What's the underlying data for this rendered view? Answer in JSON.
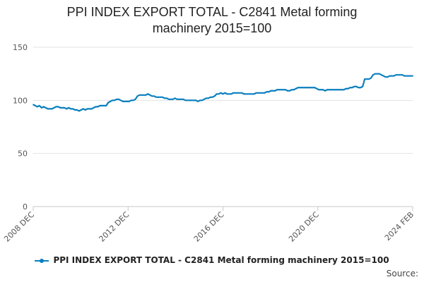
{
  "chart_data": {
    "type": "line",
    "title_lines": [
      "PPI INDEX EXPORT TOTAL - C2841 Metal forming",
      "machinery 2015=100"
    ],
    "y_ticks": [
      0,
      50,
      100,
      150
    ],
    "ylim": [
      0,
      150
    ],
    "x_tick_labels": [
      "2008 DEC",
      "2012 DEC",
      "2016 DEC",
      "2020 DEC",
      "2024 FEB"
    ],
    "x_range": [
      "2008-12",
      "2024-02"
    ],
    "grid": true,
    "legend_position": "bottom",
    "series": [
      {
        "name": "PPI INDEX EXPORT TOTAL - C2841 Metal forming machinery 2015=100",
        "color": "#0a7fbf",
        "points": [
          [
            "2008-12",
            96
          ],
          [
            "2009-01",
            95
          ],
          [
            "2009-02",
            94
          ],
          [
            "2009-03",
            95
          ],
          [
            "2009-04",
            93
          ],
          [
            "2009-05",
            94
          ],
          [
            "2009-06",
            93
          ],
          [
            "2009-07",
            92
          ],
          [
            "2009-08",
            92
          ],
          [
            "2009-09",
            92
          ],
          [
            "2009-10",
            93
          ],
          [
            "2009-11",
            94
          ],
          [
            "2009-12",
            94
          ],
          [
            "2010-01",
            93
          ],
          [
            "2010-02",
            93
          ],
          [
            "2010-03",
            93
          ],
          [
            "2010-04",
            92
          ],
          [
            "2010-05",
            93
          ],
          [
            "2010-06",
            92
          ],
          [
            "2010-07",
            92
          ],
          [
            "2010-08",
            91
          ],
          [
            "2010-09",
            91
          ],
          [
            "2010-10",
            90
          ],
          [
            "2010-11",
            91
          ],
          [
            "2010-12",
            92
          ],
          [
            "2011-01",
            91
          ],
          [
            "2011-02",
            92
          ],
          [
            "2011-03",
            92
          ],
          [
            "2011-04",
            92
          ],
          [
            "2011-05",
            93
          ],
          [
            "2011-06",
            94
          ],
          [
            "2011-07",
            94
          ],
          [
            "2011-08",
            95
          ],
          [
            "2011-09",
            95
          ],
          [
            "2011-10",
            95
          ],
          [
            "2011-11",
            95
          ],
          [
            "2011-12",
            98
          ],
          [
            "2012-01",
            99
          ],
          [
            "2012-02",
            100
          ],
          [
            "2012-03",
            100
          ],
          [
            "2012-04",
            101
          ],
          [
            "2012-05",
            101
          ],
          [
            "2012-06",
            100
          ],
          [
            "2012-07",
            99
          ],
          [
            "2012-08",
            99
          ],
          [
            "2012-09",
            99
          ],
          [
            "2012-10",
            99
          ],
          [
            "2012-11",
            100
          ],
          [
            "2012-12",
            100
          ],
          [
            "2013-01",
            101
          ],
          [
            "2013-02",
            104
          ],
          [
            "2013-03",
            105
          ],
          [
            "2013-04",
            105
          ],
          [
            "2013-05",
            105
          ],
          [
            "2013-06",
            105
          ],
          [
            "2013-07",
            106
          ],
          [
            "2013-08",
            105
          ],
          [
            "2013-09",
            104
          ],
          [
            "2013-10",
            104
          ],
          [
            "2013-11",
            103
          ],
          [
            "2013-12",
            103
          ],
          [
            "2014-01",
            103
          ],
          [
            "2014-02",
            103
          ],
          [
            "2014-03",
            102
          ],
          [
            "2014-04",
            102
          ],
          [
            "2014-05",
            101
          ],
          [
            "2014-06",
            101
          ],
          [
            "2014-07",
            101
          ],
          [
            "2014-08",
            102
          ],
          [
            "2014-09",
            101
          ],
          [
            "2014-10",
            101
          ],
          [
            "2014-11",
            101
          ],
          [
            "2014-12",
            101
          ],
          [
            "2015-01",
            100
          ],
          [
            "2015-02",
            100
          ],
          [
            "2015-03",
            100
          ],
          [
            "2015-04",
            100
          ],
          [
            "2015-05",
            100
          ],
          [
            "2015-06",
            100
          ],
          [
            "2015-07",
            99
          ],
          [
            "2015-08",
            100
          ],
          [
            "2015-09",
            100
          ],
          [
            "2015-10",
            101
          ],
          [
            "2015-11",
            102
          ],
          [
            "2015-12",
            102
          ],
          [
            "2016-01",
            103
          ],
          [
            "2016-02",
            103
          ],
          [
            "2016-03",
            104
          ],
          [
            "2016-04",
            106
          ],
          [
            "2016-05",
            106
          ],
          [
            "2016-06",
            107
          ],
          [
            "2016-07",
            106
          ],
          [
            "2016-08",
            107
          ],
          [
            "2016-09",
            106
          ],
          [
            "2016-10",
            106
          ],
          [
            "2016-11",
            106
          ],
          [
            "2016-12",
            107
          ],
          [
            "2017-01",
            107
          ],
          [
            "2017-02",
            107
          ],
          [
            "2017-03",
            107
          ],
          [
            "2017-04",
            107
          ],
          [
            "2017-05",
            106
          ],
          [
            "2017-06",
            106
          ],
          [
            "2017-07",
            106
          ],
          [
            "2017-08",
            106
          ],
          [
            "2017-09",
            106
          ],
          [
            "2017-10",
            106
          ],
          [
            "2017-11",
            107
          ],
          [
            "2017-12",
            107
          ],
          [
            "2018-01",
            107
          ],
          [
            "2018-02",
            107
          ],
          [
            "2018-03",
            107
          ],
          [
            "2018-04",
            108
          ],
          [
            "2018-05",
            108
          ],
          [
            "2018-06",
            109
          ],
          [
            "2018-07",
            109
          ],
          [
            "2018-08",
            109
          ],
          [
            "2018-09",
            110
          ],
          [
            "2018-10",
            110
          ],
          [
            "2018-11",
            110
          ],
          [
            "2018-12",
            110
          ],
          [
            "2019-01",
            110
          ],
          [
            "2019-02",
            109
          ],
          [
            "2019-03",
            109
          ],
          [
            "2019-04",
            110
          ],
          [
            "2019-05",
            110
          ],
          [
            "2019-06",
            111
          ],
          [
            "2019-07",
            112
          ],
          [
            "2019-08",
            112
          ],
          [
            "2019-09",
            112
          ],
          [
            "2019-10",
            112
          ],
          [
            "2019-11",
            112
          ],
          [
            "2019-12",
            112
          ],
          [
            "2020-01",
            112
          ],
          [
            "2020-02",
            112
          ],
          [
            "2020-03",
            112
          ],
          [
            "2020-04",
            111
          ],
          [
            "2020-05",
            110
          ],
          [
            "2020-06",
            110
          ],
          [
            "2020-07",
            110
          ],
          [
            "2020-08",
            109
          ],
          [
            "2020-09",
            110
          ],
          [
            "2020-10",
            110
          ],
          [
            "2020-11",
            110
          ],
          [
            "2020-12",
            110
          ],
          [
            "2021-01",
            110
          ],
          [
            "2021-02",
            110
          ],
          [
            "2021-03",
            110
          ],
          [
            "2021-04",
            110
          ],
          [
            "2021-05",
            110
          ],
          [
            "2021-06",
            111
          ],
          [
            "2021-07",
            111
          ],
          [
            "2021-08",
            112
          ],
          [
            "2021-09",
            112
          ],
          [
            "2021-10",
            113
          ],
          [
            "2021-11",
            113
          ],
          [
            "2021-12",
            112
          ],
          [
            "2022-01",
            112
          ],
          [
            "2022-02",
            113
          ],
          [
            "2022-03",
            120
          ],
          [
            "2022-04",
            120
          ],
          [
            "2022-05",
            120
          ],
          [
            "2022-06",
            121
          ],
          [
            "2022-07",
            124
          ],
          [
            "2022-08",
            125
          ],
          [
            "2022-09",
            125
          ],
          [
            "2022-10",
            125
          ],
          [
            "2022-11",
            124
          ],
          [
            "2022-12",
            123
          ],
          [
            "2023-01",
            122
          ],
          [
            "2023-02",
            122
          ],
          [
            "2023-03",
            123
          ],
          [
            "2023-04",
            123
          ],
          [
            "2023-05",
            123
          ],
          [
            "2023-06",
            124
          ],
          [
            "2023-07",
            124
          ],
          [
            "2023-08",
            124
          ],
          [
            "2023-09",
            124
          ],
          [
            "2023-10",
            123
          ],
          [
            "2023-11",
            123
          ],
          [
            "2023-12",
            123
          ],
          [
            "2024-01",
            123
          ],
          [
            "2024-02",
            123
          ]
        ]
      }
    ]
  },
  "legend": {
    "label": "PPI INDEX EXPORT TOTAL - C2841 Metal forming machinery 2015=100"
  },
  "source_label": "Source:"
}
